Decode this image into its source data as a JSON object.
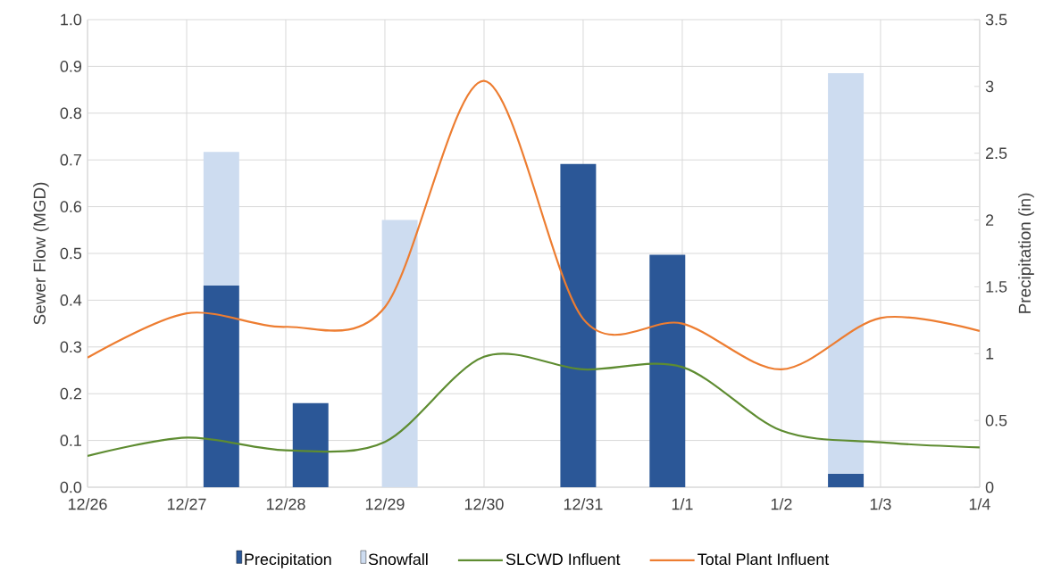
{
  "chart_data": {
    "type": "bar",
    "ylabel": "Sewer Flow (MGD)",
    "y2label": "Precipitation (in)",
    "categories": [
      "12/26",
      "12/27",
      "12/28",
      "12/29",
      "12/30",
      "12/31",
      "1/1",
      "1/2",
      "1/3",
      "1/4"
    ],
    "ylim": [
      0,
      1
    ],
    "yticks": [
      {
        "value": 0,
        "label": "0.0"
      },
      {
        "value": 0.1,
        "label": "0.1"
      },
      {
        "value": 0.2,
        "label": "0.2"
      },
      {
        "value": 0.3,
        "label": "0.3"
      },
      {
        "value": 0.4,
        "label": "0.4"
      },
      {
        "value": 0.5,
        "label": "0.5"
      },
      {
        "value": 0.6,
        "label": "0.6"
      },
      {
        "value": 0.7,
        "label": "0.7"
      },
      {
        "value": 0.8,
        "label": "0.8"
      },
      {
        "value": 0.9,
        "label": "0.9"
      },
      {
        "value": 1,
        "label": "1.0"
      }
    ],
    "y2lim": [
      0,
      3.5
    ],
    "y2ticks": [
      0,
      0.5,
      1,
      1.5,
      2,
      2.5,
      3,
      3.5
    ],
    "grid": true,
    "legend": "bottom",
    "stacked": true,
    "series": [
      {
        "name": "Precipitation",
        "axis": "y2",
        "color": "#2b5797",
        "values": [
          null,
          1.51,
          0.63,
          0,
          null,
          2.42,
          1.74,
          null,
          0.1,
          null
        ]
      },
      {
        "name": "Snowfall",
        "axis": "y2",
        "color": "#cddcf0",
        "values": [
          null,
          1.0,
          0,
          2.0,
          null,
          0,
          0,
          null,
          3.0,
          null
        ]
      },
      {
        "name": "SLCWD Influent",
        "type": "line",
        "color": "#5e8c31",
        "values": [
          0.067,
          0.106,
          0.079,
          0.097,
          0.279,
          0.252,
          0.257,
          0.121,
          0.096,
          0.085
        ]
      },
      {
        "name": "Total Plant Influent",
        "type": "line",
        "color": "#ed7d31",
        "values": [
          0.277,
          0.372,
          0.343,
          0.385,
          0.869,
          0.36,
          0.35,
          0.252,
          0.362,
          0.334
        ]
      }
    ]
  }
}
